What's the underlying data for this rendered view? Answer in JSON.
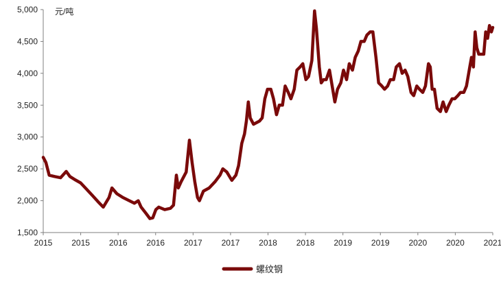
{
  "chart_data": {
    "type": "line",
    "unit_label": "元/吨",
    "ylim": [
      1500,
      5000
    ],
    "yticks": [
      1500,
      2000,
      2500,
      3000,
      3500,
      4000,
      4500,
      5000
    ],
    "ytick_labels": [
      "1,500",
      "2,000",
      "2,500",
      "3,000",
      "3,500",
      "4,000",
      "4,500",
      "5,000"
    ],
    "xlim": [
      "2015-01-01",
      "2021-06-01"
    ],
    "xtick_labels": [
      "2015",
      "2015",
      "2016",
      "2016",
      "2017",
      "2017",
      "2018",
      "2018",
      "2019",
      "2019",
      "2020",
      "2020",
      "2021"
    ],
    "grid": false,
    "legend_position": "bottom-center",
    "line_color": "#7a0a0a",
    "series": [
      {
        "name": "螺纹钢",
        "points": [
          [
            "2015-01-01",
            2680
          ],
          [
            "2015-01-15",
            2600
          ],
          [
            "2015-02-01",
            2400
          ],
          [
            "2015-03-01",
            2380
          ],
          [
            "2015-04-01",
            2360
          ],
          [
            "2015-05-01",
            2460
          ],
          [
            "2015-05-20",
            2380
          ],
          [
            "2015-06-15",
            2330
          ],
          [
            "2015-07-15",
            2280
          ],
          [
            "2015-08-15",
            2180
          ],
          [
            "2015-09-15",
            2080
          ],
          [
            "2015-10-15",
            1980
          ],
          [
            "2015-11-10",
            1900
          ],
          [
            "2015-12-10",
            2050
          ],
          [
            "2015-12-25",
            2200
          ],
          [
            "2016-01-20",
            2110
          ],
          [
            "2016-02-20",
            2050
          ],
          [
            "2016-03-25",
            2000
          ],
          [
            "2016-04-20",
            1960
          ],
          [
            "2016-05-10",
            2000
          ],
          [
            "2016-05-25",
            1900
          ],
          [
            "2016-06-20",
            1800
          ],
          [
            "2016-07-10",
            1720
          ],
          [
            "2016-07-25",
            1730
          ],
          [
            "2016-08-10",
            1860
          ],
          [
            "2016-08-25",
            1900
          ],
          [
            "2016-09-25",
            1860
          ],
          [
            "2016-10-25",
            1880
          ],
          [
            "2016-11-10",
            1930
          ],
          [
            "2016-11-25",
            2400
          ],
          [
            "2016-12-05",
            2200
          ],
          [
            "2016-12-20",
            2300
          ],
          [
            "2017-01-15",
            2450
          ],
          [
            "2017-02-01",
            2950
          ],
          [
            "2017-02-15",
            2600
          ],
          [
            "2017-03-01",
            2300
          ],
          [
            "2017-03-15",
            2050
          ],
          [
            "2017-03-25",
            2000
          ],
          [
            "2017-04-15",
            2150
          ],
          [
            "2017-05-15",
            2200
          ],
          [
            "2017-06-15",
            2300
          ],
          [
            "2017-07-10",
            2400
          ],
          [
            "2017-07-25",
            2500
          ],
          [
            "2017-08-15",
            2450
          ],
          [
            "2017-09-10",
            2320
          ],
          [
            "2017-10-01",
            2400
          ],
          [
            "2017-10-15",
            2550
          ],
          [
            "2017-11-01",
            2900
          ],
          [
            "2017-11-15",
            3050
          ],
          [
            "2017-11-25",
            3250
          ],
          [
            "2017-12-05",
            3550
          ],
          [
            "2017-12-15",
            3300
          ],
          [
            "2018-01-01",
            3200
          ],
          [
            "2018-02-01",
            3250
          ],
          [
            "2018-02-15",
            3300
          ],
          [
            "2018-03-01",
            3600
          ],
          [
            "2018-03-15",
            3750
          ],
          [
            "2018-04-01",
            3750
          ],
          [
            "2018-04-15",
            3600
          ],
          [
            "2018-05-01",
            3350
          ],
          [
            "2018-05-15",
            3500
          ],
          [
            "2018-06-01",
            3500
          ],
          [
            "2018-06-15",
            3800
          ],
          [
            "2018-07-01",
            3700
          ],
          [
            "2018-07-15",
            3600
          ],
          [
            "2018-08-01",
            3750
          ],
          [
            "2018-08-15",
            4050
          ],
          [
            "2018-09-01",
            4100
          ],
          [
            "2018-09-15",
            4150
          ],
          [
            "2018-10-01",
            3900
          ],
          [
            "2018-10-15",
            3950
          ],
          [
            "2018-11-01",
            4200
          ],
          [
            "2018-11-15",
            4980
          ],
          [
            "2018-11-25",
            4700
          ],
          [
            "2018-12-10",
            4100
          ],
          [
            "2018-12-20",
            3850
          ],
          [
            "2019-01-01",
            3900
          ],
          [
            "2019-01-15",
            3900
          ],
          [
            "2019-02-01",
            4050
          ],
          [
            "2019-02-15",
            3800
          ],
          [
            "2019-03-01",
            3550
          ],
          [
            "2019-03-15",
            3750
          ],
          [
            "2019-04-01",
            3850
          ],
          [
            "2019-04-15",
            4050
          ],
          [
            "2019-05-01",
            3900
          ],
          [
            "2019-05-15",
            4150
          ],
          [
            "2019-06-01",
            4050
          ],
          [
            "2019-06-15",
            4250
          ],
          [
            "2019-07-01",
            4350
          ],
          [
            "2019-07-15",
            4500
          ],
          [
            "2019-08-01",
            4500
          ],
          [
            "2019-08-15",
            4600
          ],
          [
            "2019-09-01",
            4650
          ],
          [
            "2019-09-15",
            4650
          ],
          [
            "2019-10-01",
            4250
          ],
          [
            "2019-10-15",
            3850
          ],
          [
            "2019-11-01",
            3800
          ],
          [
            "2019-11-15",
            3750
          ],
          [
            "2019-12-01",
            3800
          ],
          [
            "2019-12-15",
            3900
          ],
          [
            "2020-01-01",
            3900
          ],
          [
            "2020-01-15",
            4100
          ],
          [
            "2020-02-01",
            4150
          ],
          [
            "2020-02-15",
            4000
          ],
          [
            "2020-03-01",
            4050
          ],
          [
            "2020-03-15",
            3950
          ],
          [
            "2020-04-01",
            3700
          ],
          [
            "2020-04-15",
            3650
          ],
          [
            "2020-05-01",
            3800
          ],
          [
            "2020-05-15",
            3750
          ],
          [
            "2020-06-01",
            3700
          ],
          [
            "2020-06-15",
            3800
          ],
          [
            "2020-07-01",
            4150
          ],
          [
            "2020-07-10",
            4100
          ],
          [
            "2020-07-20",
            3750
          ],
          [
            "2020-08-01",
            3750
          ],
          [
            "2020-08-15",
            3450
          ],
          [
            "2020-09-01",
            3400
          ],
          [
            "2020-09-15",
            3550
          ],
          [
            "2020-10-01",
            3400
          ],
          [
            "2020-10-15",
            3500
          ],
          [
            "2020-11-01",
            3600
          ],
          [
            "2020-11-15",
            3600
          ],
          [
            "2020-12-01",
            3650
          ],
          [
            "2020-12-15",
            3700
          ],
          [
            "2021-01-01",
            3700
          ],
          [
            "2021-01-15",
            3800
          ],
          [
            "2021-02-01",
            4100
          ],
          [
            "2021-02-10",
            4250
          ],
          [
            "2021-02-20",
            4100
          ],
          [
            "2021-03-01",
            4650
          ],
          [
            "2021-03-10",
            4400
          ],
          [
            "2021-03-20",
            4300
          ],
          [
            "2021-04-01",
            4300
          ],
          [
            "2021-04-15",
            4300
          ],
          [
            "2021-04-25",
            4650
          ],
          [
            "2021-05-05",
            4550
          ],
          [
            "2021-05-15",
            4750
          ],
          [
            "2021-05-25",
            4650
          ],
          [
            "2021-06-01",
            4720
          ]
        ]
      }
    ]
  }
}
